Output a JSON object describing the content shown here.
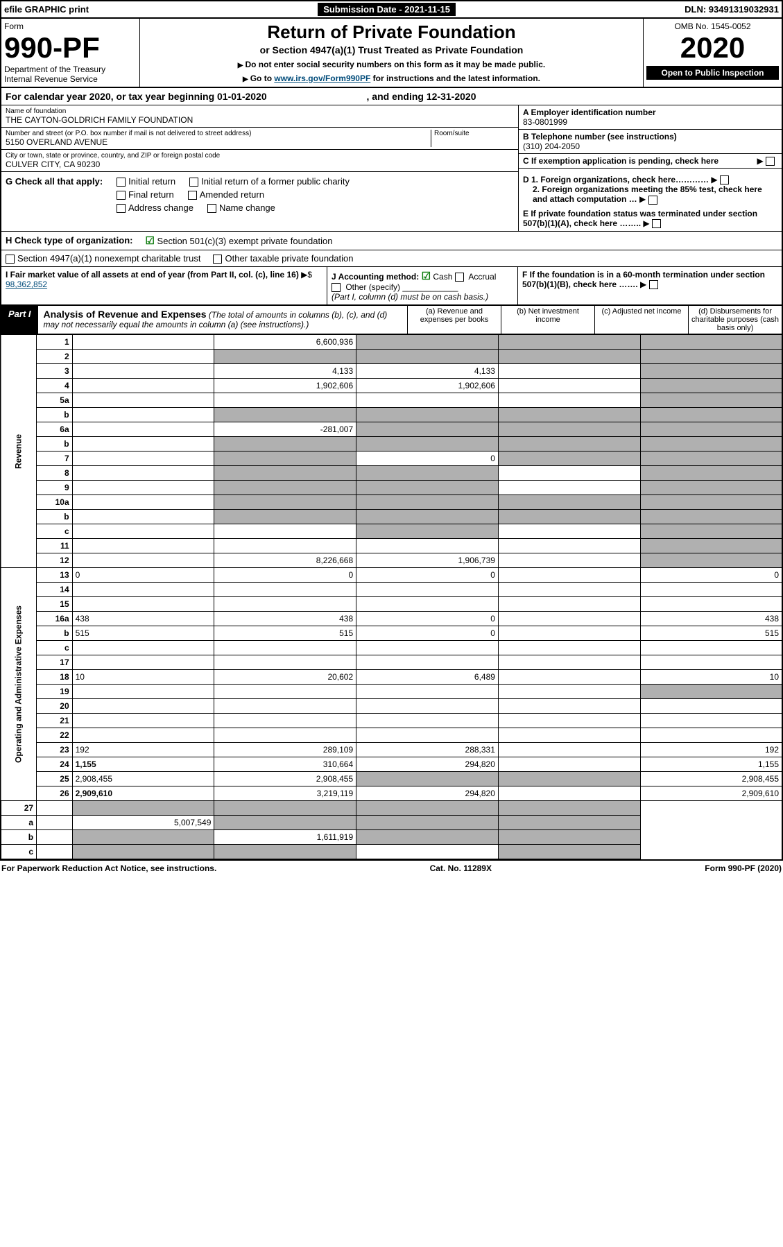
{
  "top": {
    "efile": "efile GRAPHIC print",
    "submission": "Submission Date - 2021-11-15",
    "dln": "DLN: 93491319032931"
  },
  "header": {
    "form_label": "Form",
    "form_number": "990-PF",
    "dept": "Department of the Treasury",
    "irs": "Internal Revenue Service",
    "title": "Return of Private Foundation",
    "subtitle": "or Section 4947(a)(1) Trust Treated as Private Foundation",
    "instr1": "Do not enter social security numbers on this form as it may be made public.",
    "instr2_pre": "Go to ",
    "instr2_link": "www.irs.gov/Form990PF",
    "instr2_post": " for instructions and the latest information.",
    "omb": "OMB No. 1545-0052",
    "year": "2020",
    "open_pub": "Open to Public Inspection"
  },
  "taxyear": {
    "line": "For calendar year 2020, or tax year beginning 01-01-2020",
    "ending": ", and ending 12-31-2020"
  },
  "entity": {
    "name_label": "Name of foundation",
    "name": "THE CAYTON-GOLDRICH FAMILY FOUNDATION",
    "addr_label": "Number and street (or P.O. box number if mail is not delivered to street address)",
    "addr": "5150 OVERLAND AVENUE",
    "room_label": "Room/suite",
    "city_label": "City or town, state or province, country, and ZIP or foreign postal code",
    "city": "CULVER CITY, CA  90230",
    "ein_label": "A Employer identification number",
    "ein": "83-0801999",
    "tel_label": "B Telephone number (see instructions)",
    "tel": "(310) 204-2050",
    "c_label": "C If exemption application is pending, check here"
  },
  "checks": {
    "g_label": "G Check all that apply:",
    "initial": "Initial return",
    "initial_former": "Initial return of a former public charity",
    "final": "Final return",
    "amended": "Amended return",
    "addr_change": "Address change",
    "name_change": "Name change",
    "d1": "D 1. Foreign organizations, check here…………",
    "d2": "2. Foreign organizations meeting the 85% test, check here and attach computation …",
    "e": "E  If private foundation status was terminated under section 507(b)(1)(A), check here ……..",
    "h_label": "H Check type of organization:",
    "h_501c3": "Section 501(c)(3) exempt private foundation",
    "h_4947": "Section 4947(a)(1) nonexempt charitable trust",
    "h_other": "Other taxable private foundation",
    "i_label": "I Fair market value of all assets at end of year (from Part II, col. (c), line 16)",
    "i_val": "98,362,852",
    "j_label": "J Accounting method:",
    "j_cash": "Cash",
    "j_accrual": "Accrual",
    "j_other": "Other (specify)",
    "j_note": "(Part I, column (d) must be on cash basis.)",
    "f_label": "F  If the foundation is in a 60-month termination under section 507(b)(1)(B), check here ……."
  },
  "partI": {
    "badge": "Part I",
    "title": "Analysis of Revenue and Expenses",
    "paren": " (The total of amounts in columns (b), (c), and (d) may not necessarily equal the amounts in column (a) (see instructions).)",
    "col_a": "(a)  Revenue and expenses per books",
    "col_b": "(b)  Net investment income",
    "col_c": "(c)  Adjusted net income",
    "col_d": "(d)  Disbursements for charitable purposes (cash basis only)"
  },
  "sections": {
    "revenue": "Revenue",
    "opexp": "Operating and Administrative Expenses"
  },
  "rows": [
    {
      "n": "1",
      "d": "",
      "a": "6,600,936",
      "b": "",
      "c": "",
      "shade_b": true,
      "shade_c": true,
      "shade_d": true
    },
    {
      "n": "2",
      "d": "",
      "a": "",
      "b": "",
      "c": "",
      "shade_a": true,
      "shade_b": true,
      "shade_c": true,
      "shade_d": true
    },
    {
      "n": "3",
      "d": "",
      "a": "4,133",
      "b": "4,133",
      "c": "",
      "shade_d": true
    },
    {
      "n": "4",
      "d": "",
      "a": "1,902,606",
      "b": "1,902,606",
      "c": "",
      "shade_d": true
    },
    {
      "n": "5a",
      "d": "",
      "a": "",
      "b": "",
      "c": "",
      "shade_d": true
    },
    {
      "n": "b",
      "d": "",
      "a": "",
      "b": "",
      "c": "",
      "shade_a": true,
      "shade_b": true,
      "shade_c": true,
      "shade_d": true
    },
    {
      "n": "6a",
      "d": "",
      "a": "-281,007",
      "b": "",
      "c": "",
      "shade_b": true,
      "shade_c": true,
      "shade_d": true
    },
    {
      "n": "b",
      "d": "",
      "a": "",
      "b": "",
      "c": "",
      "shade_a": true,
      "shade_b": true,
      "shade_c": true,
      "shade_d": true
    },
    {
      "n": "7",
      "d": "",
      "a": "",
      "b": "0",
      "c": "",
      "shade_a": true,
      "shade_c": true,
      "shade_d": true
    },
    {
      "n": "8",
      "d": "",
      "a": "",
      "b": "",
      "c": "",
      "shade_a": true,
      "shade_b": true,
      "shade_d": true
    },
    {
      "n": "9",
      "d": "",
      "a": "",
      "b": "",
      "c": "",
      "shade_a": true,
      "shade_b": true,
      "shade_d": true
    },
    {
      "n": "10a",
      "d": "",
      "a": "",
      "b": "",
      "c": "",
      "shade_a": true,
      "shade_b": true,
      "shade_c": true,
      "shade_d": true
    },
    {
      "n": "b",
      "d": "",
      "a": "",
      "b": "",
      "c": "",
      "shade_a": true,
      "shade_b": true,
      "shade_c": true,
      "shade_d": true
    },
    {
      "n": "c",
      "d": "",
      "a": "",
      "b": "",
      "c": "",
      "shade_b": true,
      "shade_d": true
    },
    {
      "n": "11",
      "d": "",
      "a": "",
      "b": "",
      "c": "",
      "shade_d": true
    },
    {
      "n": "12",
      "d": "",
      "a": "8,226,668",
      "b": "1,906,739",
      "c": "",
      "bold": true,
      "shade_d": true
    }
  ],
  "exp_rows": [
    {
      "n": "13",
      "d": "0",
      "a": "0",
      "b": "0",
      "c": ""
    },
    {
      "n": "14",
      "d": "",
      "a": "",
      "b": "",
      "c": ""
    },
    {
      "n": "15",
      "d": "",
      "a": "",
      "b": "",
      "c": ""
    },
    {
      "n": "16a",
      "d": "438",
      "a": "438",
      "b": "0",
      "c": ""
    },
    {
      "n": "b",
      "d": "515",
      "a": "515",
      "b": "0",
      "c": ""
    },
    {
      "n": "c",
      "d": "",
      "a": "",
      "b": "",
      "c": ""
    },
    {
      "n": "17",
      "d": "",
      "a": "",
      "b": "",
      "c": ""
    },
    {
      "n": "18",
      "d": "10",
      "a": "20,602",
      "b": "6,489",
      "c": ""
    },
    {
      "n": "19",
      "d": "",
      "a": "",
      "b": "",
      "c": "",
      "shade_d": true
    },
    {
      "n": "20",
      "d": "",
      "a": "",
      "b": "",
      "c": ""
    },
    {
      "n": "21",
      "d": "",
      "a": "",
      "b": "",
      "c": ""
    },
    {
      "n": "22",
      "d": "",
      "a": "",
      "b": "",
      "c": ""
    },
    {
      "n": "23",
      "d": "192",
      "a": "289,109",
      "b": "288,331",
      "c": ""
    },
    {
      "n": "24",
      "d": "1,155",
      "a": "310,664",
      "b": "294,820",
      "c": "",
      "bold": true
    },
    {
      "n": "25",
      "d": "2,908,455",
      "a": "2,908,455",
      "b": "",
      "c": "",
      "shade_b": true,
      "shade_c": true
    },
    {
      "n": "26",
      "d": "2,909,610",
      "a": "3,219,119",
      "b": "294,820",
      "c": "",
      "bold": true
    }
  ],
  "net_rows": [
    {
      "n": "27",
      "d": "",
      "a": "",
      "b": "",
      "c": "",
      "shade_a": true,
      "shade_b": true,
      "shade_c": true,
      "shade_d": true
    },
    {
      "n": "a",
      "d": "",
      "a": "5,007,549",
      "b": "",
      "c": "",
      "bold": true,
      "shade_b": true,
      "shade_c": true,
      "shade_d": true
    },
    {
      "n": "b",
      "d": "",
      "a": "",
      "b": "1,611,919",
      "c": "",
      "bold": true,
      "shade_a": true,
      "shade_c": true,
      "shade_d": true
    },
    {
      "n": "c",
      "d": "",
      "a": "",
      "b": "",
      "c": "",
      "bold": true,
      "shade_a": true,
      "shade_b": true,
      "shade_d": true
    }
  ],
  "footer": {
    "left": "For Paperwork Reduction Act Notice, see instructions.",
    "mid": "Cat. No. 11289X",
    "right": "Form 990-PF (2020)"
  },
  "style": {
    "shaded_bg": "#b0b0b0",
    "col_widths": {
      "lineno": 34,
      "a": 135,
      "b": 135,
      "c": 135,
      "d": 135
    }
  }
}
